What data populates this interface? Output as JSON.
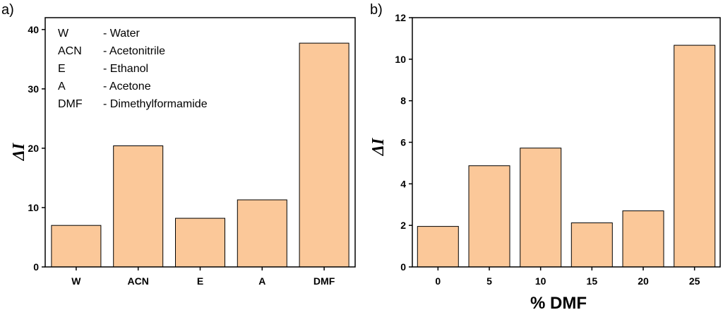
{
  "chart_data": [
    {
      "panel": "a)",
      "type": "bar",
      "categories": [
        "W",
        "ACN",
        "E",
        "A",
        "DMF"
      ],
      "values": [
        7.0,
        20.4,
        8.2,
        11.3,
        37.7
      ],
      "ylabel": "ΔI",
      "xlabel": "",
      "ylim": [
        0,
        42
      ],
      "yticks": [
        0,
        10,
        20,
        30,
        40
      ],
      "bar_color": "#FBC899",
      "legend": [
        {
          "abbr": "W",
          "name": "- Water"
        },
        {
          "abbr": "ACN",
          "name": "- Acetonitrile"
        },
        {
          "abbr": "E",
          "name": "- Ethanol"
        },
        {
          "abbr": "A",
          "name": "- Acetone"
        },
        {
          "abbr": "DMF",
          "name": "- Dimethylformamide"
        }
      ],
      "legend_position": "top-left"
    },
    {
      "panel": "b)",
      "type": "bar",
      "categories": [
        "0",
        "5",
        "10",
        "15",
        "20",
        "25"
      ],
      "values": [
        1.95,
        4.87,
        5.72,
        2.12,
        2.7,
        10.67
      ],
      "ylabel": "ΔI",
      "xlabel": "% DMF",
      "ylim": [
        0,
        12
      ],
      "yticks": [
        0,
        2,
        4,
        6,
        8,
        10,
        12
      ],
      "bar_color": "#FBC899"
    }
  ]
}
